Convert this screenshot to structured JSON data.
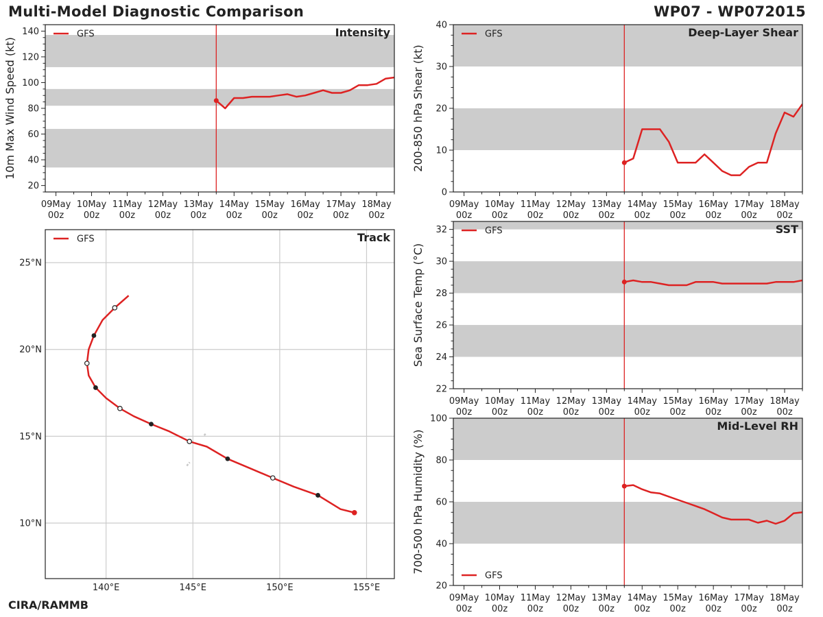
{
  "header": {
    "title": "Multi-Model Diagnostic Comparison",
    "storm_id": "WP07 - WP072015"
  },
  "footer": {
    "credit": "CIRA/RAMMB"
  },
  "colors": {
    "gfs": "#dd2222",
    "band": "#cccccc",
    "grid": "#cccccc",
    "axis": "#222222"
  },
  "chart_data": [
    {
      "id": "intensity",
      "type": "line",
      "title": "Intensity",
      "ylabel": "10m Max Wind Speed (kt)",
      "ylim": [
        15,
        145
      ],
      "yticks": [
        20,
        40,
        60,
        80,
        100,
        120,
        140
      ],
      "bands": [
        [
          34,
          64
        ],
        [
          82,
          95
        ],
        [
          112,
          137
        ]
      ],
      "legend": {
        "label": "GFS",
        "position": "top-left"
      },
      "xlim": [
        -0.3,
        9.5
      ],
      "xticks": [
        0,
        1,
        2,
        3,
        4,
        5,
        6,
        7,
        8,
        9
      ],
      "xtick_labels": [
        [
          "09May",
          "00z"
        ],
        [
          "10May",
          "00z"
        ],
        [
          "11May",
          "00z"
        ],
        [
          "12May",
          "00z"
        ],
        [
          "13May",
          "00z"
        ],
        [
          "14May",
          "00z"
        ],
        [
          "15May",
          "00z"
        ],
        [
          "16May",
          "00z"
        ],
        [
          "17May",
          "00z"
        ],
        [
          "18May",
          "00z"
        ]
      ],
      "vline": 4.5,
      "series": [
        {
          "name": "GFS",
          "x": [
            4.5,
            4.75,
            5.0,
            5.25,
            5.5,
            5.75,
            6.0,
            6.25,
            6.5,
            6.75,
            7.0,
            7.25,
            7.5,
            7.75,
            8.0,
            8.25,
            8.5,
            8.75,
            9.0,
            9.25,
            9.5
          ],
          "y": [
            86,
            80,
            88,
            88,
            89,
            89,
            89,
            90,
            91,
            89,
            90,
            92,
            94,
            92,
            92,
            94,
            98,
            98,
            99,
            103,
            104
          ]
        }
      ]
    },
    {
      "id": "shear",
      "type": "line",
      "title": "Deep-Layer Shear",
      "ylabel": "200-850 hPa Shear (kt)",
      "ylim": [
        0,
        40
      ],
      "yticks": [
        0,
        10,
        20,
        30,
        40
      ],
      "bands": [
        [
          10,
          20
        ],
        [
          30,
          40
        ]
      ],
      "legend": {
        "label": "GFS",
        "position": "top-left"
      },
      "xlim": [
        -0.3,
        9.5
      ],
      "xticks": [
        0,
        1,
        2,
        3,
        4,
        5,
        6,
        7,
        8,
        9
      ],
      "xtick_labels": [
        [
          "09May",
          "00z"
        ],
        [
          "10May",
          "00z"
        ],
        [
          "11May",
          "00z"
        ],
        [
          "12May",
          "00z"
        ],
        [
          "13May",
          "00z"
        ],
        [
          "14May",
          "00z"
        ],
        [
          "15May",
          "00z"
        ],
        [
          "16May",
          "00z"
        ],
        [
          "17May",
          "00z"
        ],
        [
          "18May",
          "00z"
        ]
      ],
      "vline": 4.5,
      "series": [
        {
          "name": "GFS",
          "x": [
            4.5,
            4.75,
            5.0,
            5.25,
            5.5,
            5.75,
            6.0,
            6.25,
            6.5,
            6.75,
            7.0,
            7.25,
            7.5,
            7.75,
            8.0,
            8.25,
            8.5,
            8.75,
            9.0,
            9.25,
            9.5
          ],
          "y": [
            7,
            8,
            15,
            15,
            15,
            12,
            7,
            7,
            7,
            9,
            7,
            5,
            4,
            4,
            6,
            7,
            7,
            14,
            19,
            18,
            21
          ]
        }
      ]
    },
    {
      "id": "sst",
      "type": "line",
      "title": "SST",
      "ylabel": "Sea Surface Temp (°C)",
      "ylim": [
        22,
        32.5
      ],
      "yticks": [
        22,
        24,
        26,
        28,
        30,
        32
      ],
      "bands": [
        [
          24,
          26
        ],
        [
          28,
          30
        ],
        [
          32,
          32.5
        ]
      ],
      "legend": {
        "label": "GFS",
        "position": "top-left"
      },
      "xlim": [
        -0.3,
        9.5
      ],
      "xticks": [
        0,
        1,
        2,
        3,
        4,
        5,
        6,
        7,
        8,
        9
      ],
      "xtick_labels": [
        [
          "09May",
          "00z"
        ],
        [
          "10May",
          "00z"
        ],
        [
          "11May",
          "00z"
        ],
        [
          "12May",
          "00z"
        ],
        [
          "13May",
          "00z"
        ],
        [
          "14May",
          "00z"
        ],
        [
          "15May",
          "00z"
        ],
        [
          "16May",
          "00z"
        ],
        [
          "17May",
          "00z"
        ],
        [
          "18May",
          "00z"
        ]
      ],
      "vline": 4.5,
      "series": [
        {
          "name": "GFS",
          "x": [
            4.5,
            4.75,
            5.0,
            5.25,
            5.5,
            5.75,
            6.0,
            6.25,
            6.5,
            6.75,
            7.0,
            7.25,
            7.5,
            7.75,
            8.0,
            8.25,
            8.5,
            8.75,
            9.0,
            9.25,
            9.5
          ],
          "y": [
            28.7,
            28.8,
            28.7,
            28.7,
            28.6,
            28.5,
            28.5,
            28.5,
            28.7,
            28.7,
            28.7,
            28.6,
            28.6,
            28.6,
            28.6,
            28.6,
            28.6,
            28.7,
            28.7,
            28.7,
            28.8
          ]
        }
      ]
    },
    {
      "id": "rh",
      "type": "line",
      "title": "Mid-Level RH",
      "ylabel": "700-500 hPa Humidity (%)",
      "ylim": [
        20,
        100
      ],
      "yticks": [
        20,
        40,
        60,
        80,
        100
      ],
      "bands": [
        [
          40,
          60
        ],
        [
          80,
          100
        ]
      ],
      "legend": {
        "label": "GFS",
        "position": "bottom-left"
      },
      "xlim": [
        -0.3,
        9.5
      ],
      "xticks": [
        0,
        1,
        2,
        3,
        4,
        5,
        6,
        7,
        8,
        9
      ],
      "xtick_labels": [
        [
          "09May",
          "00z"
        ],
        [
          "10May",
          "00z"
        ],
        [
          "11May",
          "00z"
        ],
        [
          "12May",
          "00z"
        ],
        [
          "13May",
          "00z"
        ],
        [
          "14May",
          "00z"
        ],
        [
          "15May",
          "00z"
        ],
        [
          "16May",
          "00z"
        ],
        [
          "17May",
          "00z"
        ],
        [
          "18May",
          "00z"
        ]
      ],
      "vline": 4.5,
      "series": [
        {
          "name": "GFS",
          "x": [
            4.5,
            4.75,
            5.0,
            5.25,
            5.5,
            5.75,
            6.0,
            6.25,
            6.5,
            6.75,
            7.0,
            7.25,
            7.5,
            7.75,
            8.0,
            8.25,
            8.5,
            8.75,
            9.0,
            9.25,
            9.5
          ],
          "y": [
            67.5,
            68,
            66,
            64.5,
            64,
            62.5,
            61,
            59.5,
            58,
            56.5,
            54.5,
            52.5,
            51.5,
            51.5,
            51.5,
            50,
            51,
            49.5,
            51,
            54.5,
            55
          ]
        }
      ]
    },
    {
      "id": "track",
      "type": "line",
      "title": "Track",
      "legend": {
        "label": "GFS",
        "position": "top-left"
      },
      "xlim": [
        136.5,
        156.6
      ],
      "ylim": [
        6.8,
        26.9
      ],
      "xticks": [
        140,
        145,
        150,
        155
      ],
      "xtick_labels": [
        "140°E",
        "145°E",
        "150°E",
        "155°E"
      ],
      "yticks": [
        10,
        15,
        20,
        25
      ],
      "ytick_labels": [
        "10°N",
        "15°N",
        "20°N",
        "25°N"
      ],
      "series": [
        {
          "name": "GFS",
          "lon": [
            154.3,
            153.5,
            152.2,
            150.8,
            149.6,
            148.3,
            147.0,
            145.8,
            144.8,
            143.6,
            142.6,
            141.6,
            140.8,
            140.0,
            139.4,
            139.0,
            138.9,
            139.0,
            139.3,
            139.8,
            140.5,
            141.3
          ],
          "lat": [
            10.6,
            10.8,
            11.6,
            12.1,
            12.6,
            13.15,
            13.7,
            14.4,
            14.7,
            15.3,
            15.7,
            16.15,
            16.6,
            17.2,
            17.8,
            18.5,
            19.2,
            20.0,
            20.8,
            21.7,
            22.4,
            23.1
          ],
          "markers": [
            {
              "index": 0,
              "style": "start"
            },
            {
              "index": 2,
              "style": "filled"
            },
            {
              "index": 4,
              "style": "open"
            },
            {
              "index": 6,
              "style": "filled"
            },
            {
              "index": 8,
              "style": "open"
            },
            {
              "index": 10,
              "style": "filled"
            },
            {
              "index": 12,
              "style": "open"
            },
            {
              "index": 14,
              "style": "filled"
            },
            {
              "index": 16,
              "style": "open"
            },
            {
              "index": 18,
              "style": "filled"
            },
            {
              "index": 20,
              "style": "open"
            }
          ]
        }
      ],
      "land": [
        {
          "lon": [
            145.65,
            145.78
          ],
          "lat": [
            15.05,
            15.2
          ]
        },
        {
          "lon": [
            144.65,
            144.82
          ],
          "lat": [
            13.3,
            13.5
          ]
        }
      ]
    }
  ]
}
